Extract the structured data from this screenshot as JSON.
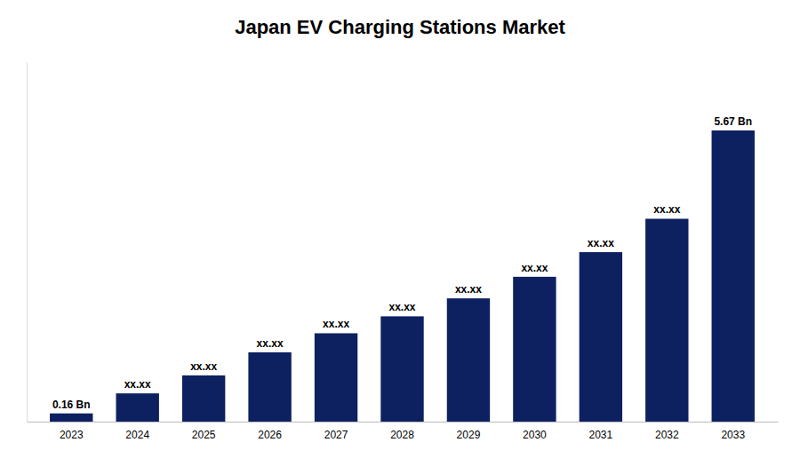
{
  "chart_data": {
    "type": "bar",
    "title": "Japan EV Charging Stations Market",
    "categories": [
      "2023",
      "2024",
      "2025",
      "2026",
      "2027",
      "2028",
      "2029",
      "2030",
      "2031",
      "2032",
      "2033"
    ],
    "values": [
      0.16,
      0.55,
      0.9,
      1.35,
      1.72,
      2.05,
      2.4,
      2.82,
      3.3,
      3.95,
      5.67
    ],
    "value_labels": [
      "0.16 Bn",
      "xx.xx",
      "xx.xx",
      "xx.xx",
      "xx.xx",
      "xx.xx",
      "xx.xx",
      "xx.xx",
      "xx.xx",
      "xx.xx",
      "5.67 Bn"
    ],
    "data_labels": true,
    "color": "#0D2060",
    "ylim": [
      0,
      7.0
    ],
    "grid": false,
    "tick_labels": "x"
  }
}
